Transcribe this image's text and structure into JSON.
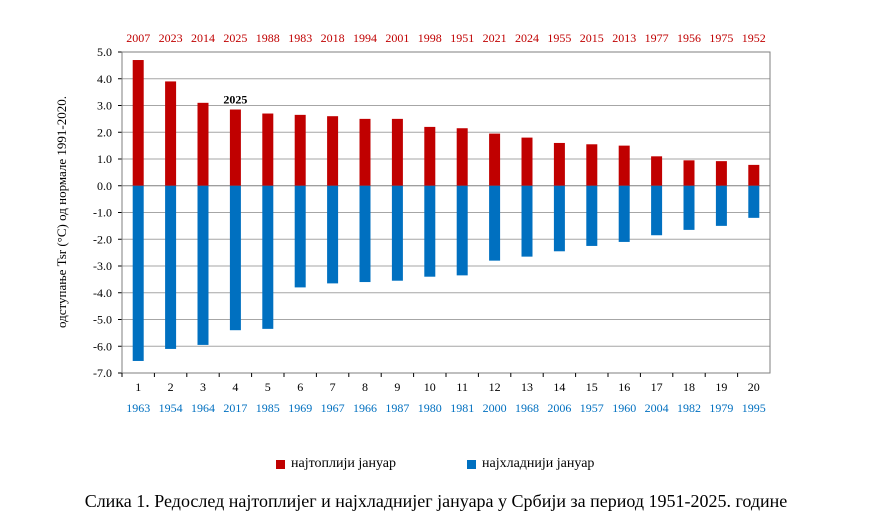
{
  "chart_data": {
    "type": "bar",
    "categories": [
      "1",
      "2",
      "3",
      "4",
      "5",
      "6",
      "7",
      "8",
      "9",
      "10",
      "11",
      "12",
      "13",
      "14",
      "15",
      "16",
      "17",
      "18",
      "19",
      "20"
    ],
    "top_labels": [
      "2007",
      "2023",
      "2014",
      "2025",
      "1988",
      "1983",
      "2018",
      "1994",
      "2001",
      "1998",
      "1951",
      "2021",
      "2024",
      "1955",
      "2015",
      "2013",
      "1977",
      "1956",
      "1975",
      "1952"
    ],
    "bottom_labels": [
      "1963",
      "1954",
      "1964",
      "2017",
      "1985",
      "1969",
      "1967",
      "1966",
      "1987",
      "1980",
      "1981",
      "2000",
      "1968",
      "2006",
      "1957",
      "1960",
      "2004",
      "1982",
      "1979",
      "1995"
    ],
    "series": [
      {
        "name": "најтоплији јануар",
        "color": "#c00000",
        "values": [
          4.7,
          3.9,
          3.1,
          2.85,
          2.7,
          2.65,
          2.6,
          2.5,
          2.5,
          2.2,
          2.15,
          1.95,
          1.8,
          1.6,
          1.55,
          1.5,
          1.1,
          0.95,
          0.92,
          0.78
        ]
      },
      {
        "name": "најхладнији јануар",
        "color": "#0070c0",
        "values": [
          -6.55,
          -6.1,
          -5.95,
          -5.4,
          -5.35,
          -3.8,
          -3.65,
          -3.6,
          -3.55,
          -3.4,
          -3.35,
          -2.8,
          -2.65,
          -2.45,
          -2.25,
          -2.1,
          -1.85,
          -1.65,
          -1.5,
          -1.2
        ]
      }
    ],
    "annotation": {
      "text": "2025",
      "category_index": 3
    },
    "ylabel": "одступање Tsr (°C)  од  нормале 1991-2020.",
    "ylim": [
      -7.0,
      5.0
    ],
    "yticks": [
      "5.0",
      "4.0",
      "3.0",
      "2.0",
      "1.0",
      "0.0",
      "-1.0",
      "-2.0",
      "-3.0",
      "-4.0",
      "-5.0",
      "-6.0",
      "-7.0"
    ],
    "ytick_values": [
      5,
      4,
      3,
      2,
      1,
      0,
      -1,
      -2,
      -3,
      -4,
      -5,
      -6,
      -7
    ],
    "grid": true,
    "legend_position": "bottom"
  },
  "colors": {
    "warm": "#c00000",
    "cold": "#0070c0",
    "grid": "#a6a6a6"
  },
  "legend": {
    "warm_label": "најтоплији јануар",
    "cold_label": "најхладнији јануар"
  },
  "caption": "Слика 1. Редослед најтоплијег и најхладнијег јануара у Србији за период 1951-2025. године"
}
